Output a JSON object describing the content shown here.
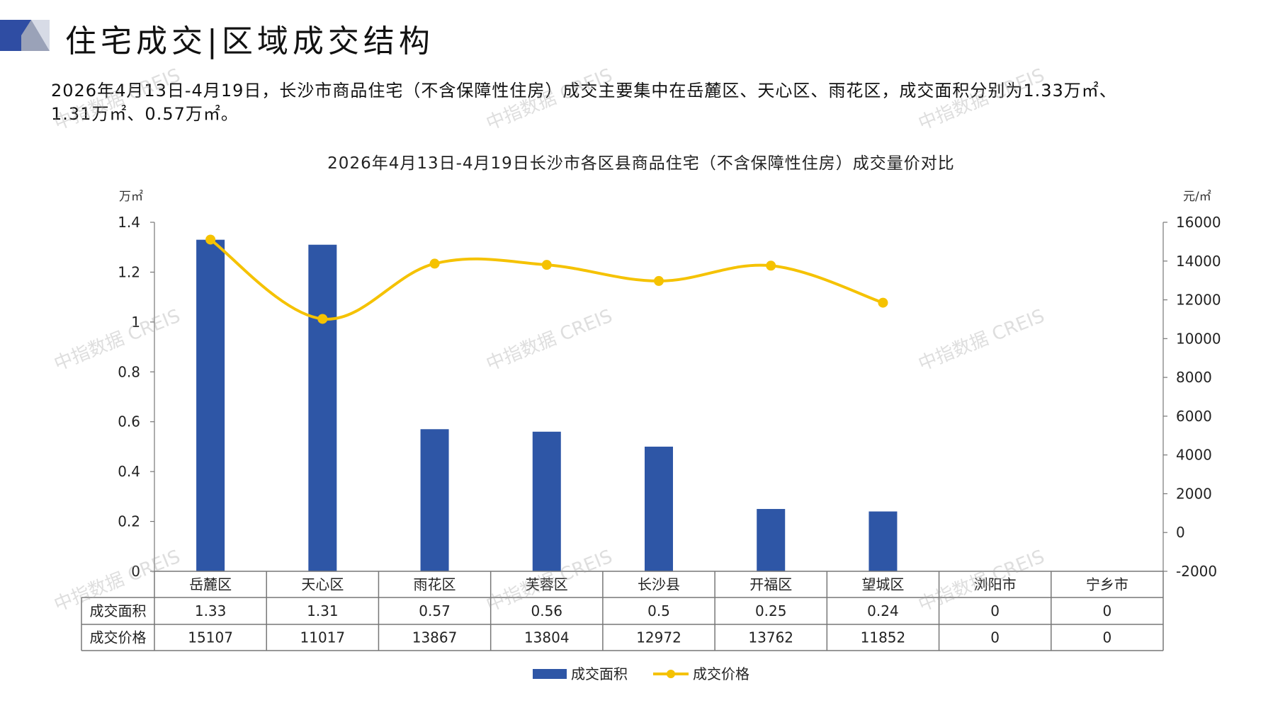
{
  "header": {
    "title": "住宅成交|区域成交结构",
    "colors": {
      "dark_blue": "#2f4da3",
      "gray": "#9aa2b8",
      "light": "#d7dbe6"
    }
  },
  "summary": {
    "line1": "2026年4月13日-4月19日，长沙市商品住宅（不含保障性住房）成交主要集中在岳麓区、天心区、雨花区，成交面积分别为1.33万㎡、",
    "line2": "1.31万㎡、0.57万㎡。"
  },
  "watermark": "中指数据 CREIS",
  "chart_data": {
    "type": "bar",
    "title": "2026年4月13日-4月19日长沙市各区县商品住宅（不含保障性住房）成交量价对比",
    "categories": [
      "岳麓区",
      "天心区",
      "雨花区",
      "芙蓉区",
      "长沙县",
      "开福区",
      "望城区",
      "浏阳市",
      "宁乡市"
    ],
    "series": [
      {
        "name": "成交面积",
        "type": "bar",
        "axis": "left",
        "color": "#2e56a6",
        "values": [
          1.33,
          1.31,
          0.57,
          0.56,
          0.5,
          0.25,
          0.24,
          0,
          0
        ]
      },
      {
        "name": "成交价格",
        "type": "line",
        "axis": "right",
        "color": "#f5c200",
        "values": [
          15107,
          11017,
          13867,
          13804,
          12972,
          13762,
          11852,
          0,
          0
        ],
        "plotted_points": 7
      }
    ],
    "y_left": {
      "unit": "万㎡",
      "ylim": [
        0,
        1.4
      ],
      "ticks": [
        "0",
        "0.2",
        "0.4",
        "0.6",
        "0.8",
        "1",
        "1.2",
        "1.4"
      ]
    },
    "y_right": {
      "unit": "元/㎡",
      "ylim": [
        -2000,
        16000
      ],
      "ticks": [
        "-2000",
        "0",
        "2000",
        "4000",
        "6000",
        "8000",
        "10000",
        "12000",
        "14000",
        "16000"
      ]
    },
    "table": {
      "rows": [
        {
          "label": "成交面积",
          "cells": [
            "1.33",
            "1.31",
            "0.57",
            "0.56",
            "0.5",
            "0.25",
            "0.24",
            "0",
            "0"
          ]
        },
        {
          "label": "成交价格",
          "cells": [
            "15107",
            "11017",
            "13867",
            "13804",
            "12972",
            "13762",
            "11852",
            "0",
            "0"
          ]
        }
      ]
    },
    "legend": "bottom",
    "grid": false
  }
}
